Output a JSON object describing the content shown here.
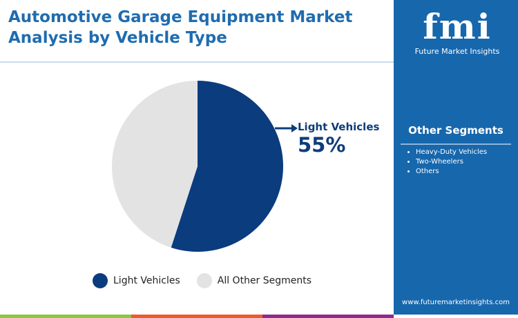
{
  "title": "Automotive Garage Equipment Market Analysis by Vehicle Type",
  "logo": {
    "text": "fmi",
    "subtitle": "Future Market Insights"
  },
  "side_panel": {
    "title": "Other Segments",
    "items": [
      "Heavy-Duty Vehicles",
      "Two-Wheelers",
      "Others"
    ],
    "url": "www.futuremarketinsights.com"
  },
  "colors": {
    "light_vehicles": "#0b3c7d",
    "other": "#e3e3e3",
    "panel": "#1767ad",
    "bar": [
      "#8dc63f",
      "#f05a28",
      "#92278f"
    ]
  },
  "chart_data": {
    "type": "pie",
    "categories": [
      "Light Vehicles",
      "All Other Segments"
    ],
    "values": [
      55,
      45
    ],
    "callout": {
      "label": "Light Vehicles",
      "value": "55%"
    },
    "legend": "bottom"
  }
}
